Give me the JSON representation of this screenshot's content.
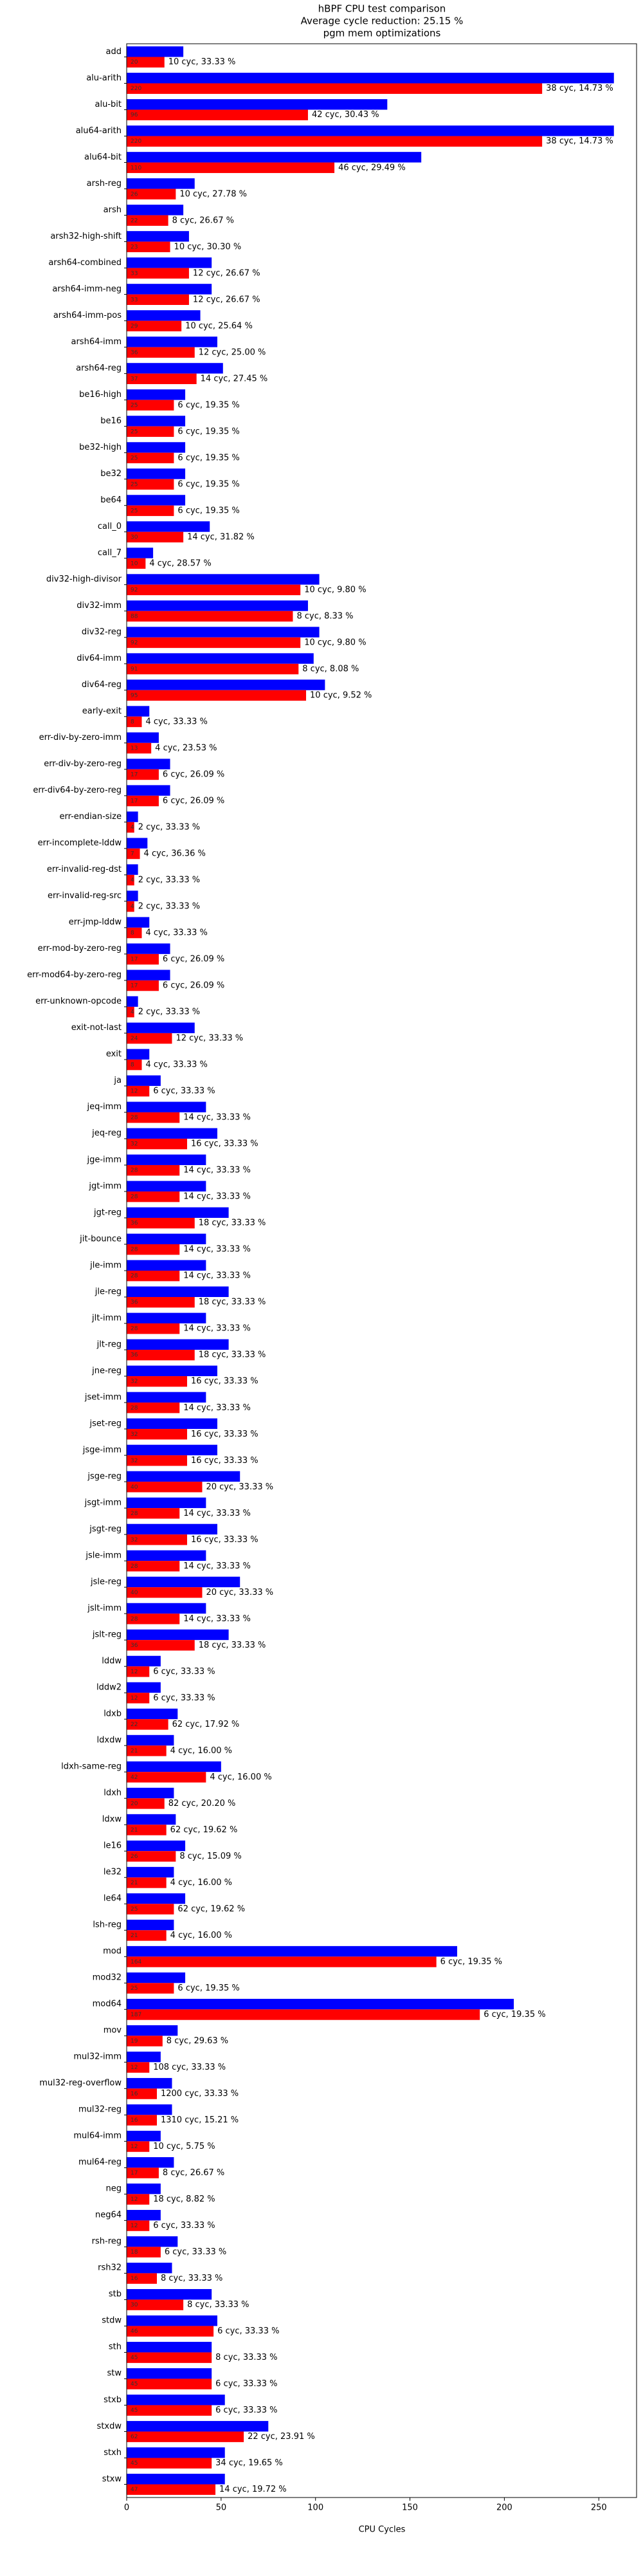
{
  "chart_data": {
    "type": "bar",
    "orientation": "horizontal",
    "title": "hBPF CPU test comparison",
    "subtitle": "Average cycle reduction: 25.15 %",
    "subtitle2": "pgm mem optimizations",
    "x_label": "CPU Cycles",
    "xlim": [
      0,
      270
    ],
    "xticks": [
      0,
      50,
      100,
      150,
      200,
      250
    ],
    "categories": [
      "add",
      "alu-arith",
      "alu-bit",
      "alu64-arith",
      "alu64-bit",
      "arsh-reg",
      "arsh",
      "arsh32-high-shift",
      "arsh64-combined",
      "arsh64-imm-neg",
      "arsh64-imm-pos",
      "arsh64-imm",
      "arsh64-reg",
      "be16-high",
      "be16",
      "be32-high",
      "be32",
      "be64",
      "call_0",
      "call_7",
      "div32-high-divisor",
      "div32-imm",
      "div32-reg",
      "div64-imm",
      "div64-reg",
      "early-exit",
      "err-div-by-zero-imm",
      "err-div-by-zero-reg",
      "err-div64-by-zero-reg",
      "err-endian-size",
      "err-incomplete-lddw",
      "err-invalid-reg-dst",
      "err-invalid-reg-src",
      "err-jmp-lddw",
      "err-mod-by-zero-reg",
      "err-mod64-by-zero-reg",
      "err-unknown-opcode",
      "exit-not-last",
      "exit",
      "ja",
      "jeq-imm",
      "jeq-reg",
      "jge-imm",
      "jgt-imm",
      "jgt-reg",
      "jit-bounce",
      "jle-imm",
      "jle-reg",
      "jlt-imm",
      "jlt-reg",
      "jne-reg",
      "jset-imm",
      "jset-reg",
      "jsge-imm",
      "jsge-reg",
      "jsgt-imm",
      "jsgt-reg",
      "jsle-imm",
      "jsle-reg",
      "jslt-imm",
      "jslt-reg",
      "lddw",
      "lddw2",
      "ldxb",
      "ldxdw",
      "ldxh-same-reg",
      "ldxh",
      "ldxw",
      "le16",
      "le32",
      "le64",
      "lsh-reg",
      "mod",
      "mod32",
      "mod64",
      "mov",
      "mul32-imm",
      "mul32-reg-overflow",
      "mul32-reg",
      "mul64-imm",
      "mul64-reg",
      "neg",
      "neg64",
      "rsh-reg",
      "rsh32",
      "stb",
      "stdw",
      "sth",
      "stw",
      "stxb",
      "stxdw",
      "stxh",
      "stxw"
    ],
    "series": [
      {
        "color": "#0000ff",
        "values": [
          30,
          258,
          138,
          258,
          156,
          36,
          30,
          33,
          45,
          45,
          39,
          48,
          51,
          31,
          31,
          31,
          31,
          31,
          44,
          14,
          102,
          96,
          102,
          99,
          105,
          12,
          17,
          23,
          23,
          6,
          11,
          6,
          6,
          12,
          23,
          23,
          6,
          36,
          12,
          18,
          42,
          48,
          42,
          42,
          54,
          42,
          42,
          54,
          42,
          54,
          48,
          42,
          48,
          48,
          60,
          42,
          48,
          42,
          60,
          42,
          54,
          18,
          18,
          27,
          25,
          50,
          25,
          26,
          31,
          25,
          31,
          25,
          175,
          31,
          205,
          27,
          18,
          24,
          24,
          18,
          25,
          18,
          18,
          27,
          24,
          45,
          48,
          45,
          45,
          52,
          75,
          52,
          52
        ]
      },
      {
        "color": "#ff0000",
        "values": [
          20,
          220,
          96,
          220,
          110,
          26,
          22,
          23,
          33,
          33,
          29,
          36,
          37,
          25,
          25,
          25,
          25,
          25,
          30,
          10,
          92,
          88,
          92,
          91,
          95,
          8,
          13,
          17,
          17,
          4,
          7,
          4,
          4,
          8,
          17,
          17,
          4,
          24,
          8,
          12,
          28,
          32,
          28,
          28,
          36,
          28,
          28,
          36,
          28,
          36,
          32,
          28,
          32,
          32,
          40,
          28,
          32,
          28,
          40,
          28,
          36,
          12,
          12,
          22,
          21,
          42,
          20,
          21,
          26,
          21,
          25,
          21,
          164,
          25,
          187,
          19,
          12,
          16,
          16,
          12,
          17,
          12,
          12,
          18,
          16,
          30,
          46,
          45,
          45,
          45,
          62,
          45,
          47
        ]
      }
    ],
    "annotations": [
      "10 cyc, 33.33 %",
      "38 cyc, 14.73 %",
      "42 cyc, 30.43 %",
      "38 cyc, 14.73 %",
      "46 cyc, 29.49 %",
      "10 cyc, 27.78 %",
      "8 cyc, 26.67 %",
      "10 cyc, 30.30 %",
      "12 cyc, 26.67 %",
      "12 cyc, 26.67 %",
      "10 cyc, 25.64 %",
      "12 cyc, 25.00 %",
      "14 cyc, 27.45 %",
      "6 cyc, 19.35 %",
      "6 cyc, 19.35 %",
      "6 cyc, 19.35 %",
      "6 cyc, 19.35 %",
      "6 cyc, 19.35 %",
      "14 cyc, 31.82 %",
      "4 cyc, 28.57 %",
      "10 cyc, 9.80 %",
      "8 cyc, 8.33 %",
      "10 cyc, 9.80 %",
      "8 cyc, 8.08 %",
      "10 cyc, 9.52 %",
      "4 cyc, 33.33 %",
      "4 cyc, 23.53 %",
      "6 cyc, 26.09 %",
      "6 cyc, 26.09 %",
      "2 cyc, 33.33 %",
      "4 cyc, 36.36 %",
      "2 cyc, 33.33 %",
      "2 cyc, 33.33 %",
      "4 cyc, 33.33 %",
      "6 cyc, 26.09 %",
      "6 cyc, 26.09 %",
      "2 cyc, 33.33 %",
      "12 cyc, 33.33 %",
      "4 cyc, 33.33 %",
      "6 cyc, 33.33 %",
      "14 cyc, 33.33 %",
      "16 cyc, 33.33 %",
      "14 cyc, 33.33 %",
      "14 cyc, 33.33 %",
      "18 cyc, 33.33 %",
      "14 cyc, 33.33 %",
      "14 cyc, 33.33 %",
      "18 cyc, 33.33 %",
      "14 cyc, 33.33 %",
      "18 cyc, 33.33 %",
      "16 cyc, 33.33 %",
      "14 cyc, 33.33 %",
      "16 cyc, 33.33 %",
      "16 cyc, 33.33 %",
      "20 cyc, 33.33 %",
      "14 cyc, 33.33 %",
      "16 cyc, 33.33 %",
      "14 cyc, 33.33 %",
      "20 cyc, 33.33 %",
      "14 cyc, 33.33 %",
      "18 cyc, 33.33 %",
      "6 cyc, 33.33 %",
      "6 cyc, 33.33 %",
      "62 cyc, 17.92 %",
      "4 cyc, 16.00 %",
      "4 cyc, 16.00 %",
      "82 cyc, 20.20 %",
      "62 cyc, 19.62 %",
      "8 cyc, 15.09 %",
      "4 cyc, 16.00 %",
      "62 cyc, 19.62 %",
      "4 cyc, 16.00 %",
      "6 cyc, 19.35 %",
      "6 cyc, 19.35 %",
      "6 cyc, 19.35 %",
      "8 cyc, 29.63 %",
      "108 cyc, 33.33 %",
      "1200 cyc, 33.33 %",
      "1310 cyc, 15.21 %",
      "10 cyc, 5.75 %",
      "8 cyc, 26.67 %",
      "18 cyc, 8.82 %",
      "6 cyc, 33.33 %",
      "6 cyc, 33.33 %",
      "8 cyc, 33.33 %",
      "8 cyc, 33.33 %",
      "6 cyc, 33.33 %",
      "8 cyc, 33.33 %",
      "6 cyc, 33.33 %",
      "6 cyc, 33.33 %",
      "22 cyc, 23.91 %",
      "34 cyc, 19.65 %",
      "14 cyc, 19.72 %"
    ]
  }
}
